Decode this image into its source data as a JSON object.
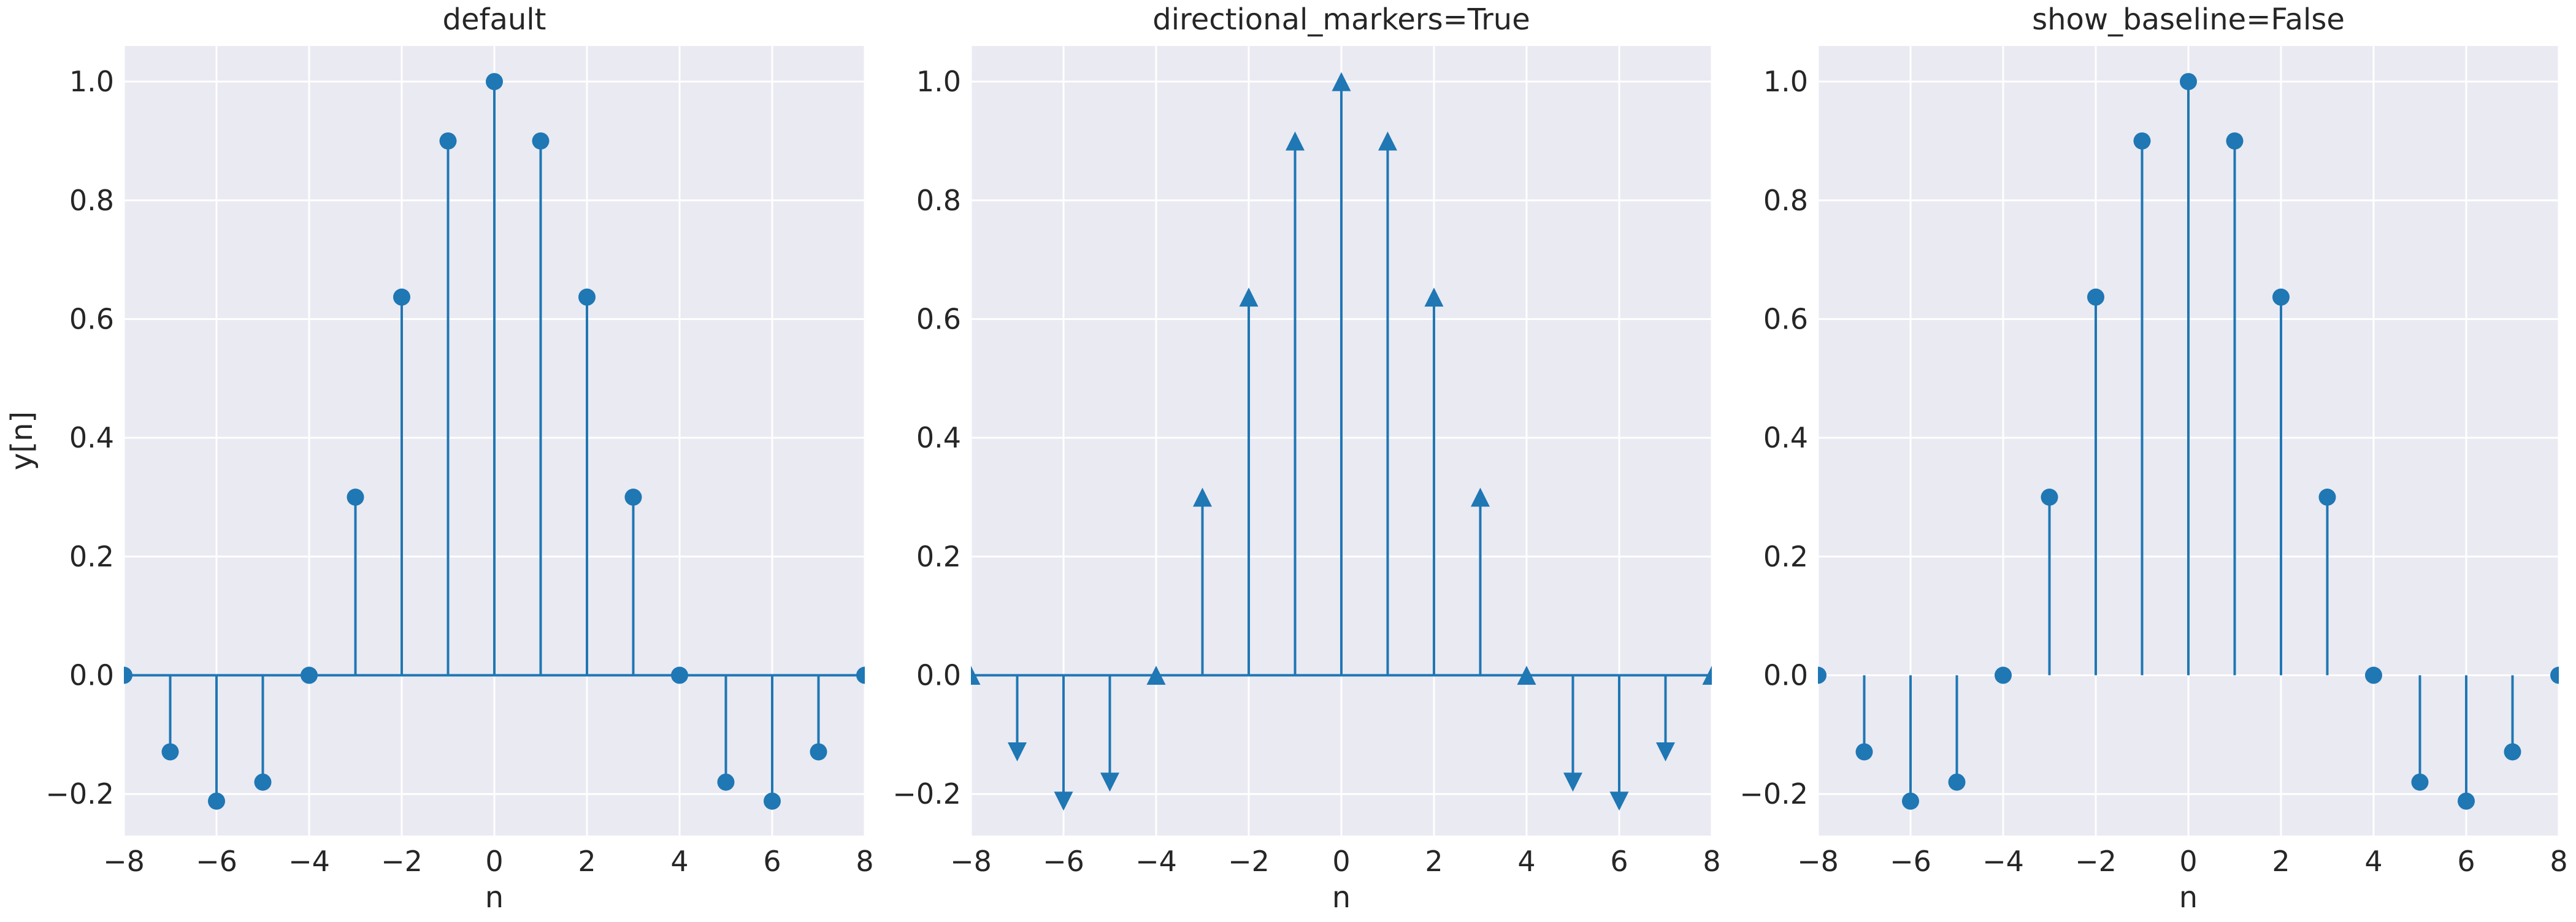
{
  "chart_data": [
    {
      "type": "stem",
      "title": "default",
      "xlabel": "n",
      "ylabel": "y[n]",
      "x": [
        -8,
        -7,
        -6,
        -5,
        -4,
        -3,
        -2,
        -1,
        0,
        1,
        2,
        3,
        4,
        5,
        6,
        7,
        8
      ],
      "y": [
        0,
        -0.129,
        -0.212,
        -0.18,
        0,
        0.3,
        0.637,
        0.9,
        1.0,
        0.9,
        0.637,
        0.3,
        0,
        -0.18,
        -0.212,
        -0.129,
        0
      ],
      "xlim": [
        -8,
        8
      ],
      "ylim": [
        -0.27,
        1.06
      ],
      "xticks": [
        "−8",
        "−6",
        "−4",
        "−2",
        "0",
        "2",
        "4",
        "6",
        "8"
      ],
      "yticks": [
        "−0.2",
        "0.0",
        "0.2",
        "0.4",
        "0.6",
        "0.8",
        "1.0"
      ],
      "marker": "circle",
      "baseline": true,
      "grid": true
    },
    {
      "type": "stem",
      "title": "directional_markers=True",
      "xlabel": "n",
      "ylabel": "",
      "x": [
        -8,
        -7,
        -6,
        -5,
        -4,
        -3,
        -2,
        -1,
        0,
        1,
        2,
        3,
        4,
        5,
        6,
        7,
        8
      ],
      "y": [
        0,
        -0.129,
        -0.212,
        -0.18,
        0,
        0.3,
        0.637,
        0.9,
        1.0,
        0.9,
        0.637,
        0.3,
        0,
        -0.18,
        -0.212,
        -0.129,
        0
      ],
      "xlim": [
        -8,
        8
      ],
      "ylim": [
        -0.27,
        1.06
      ],
      "xticks": [
        "−8",
        "−6",
        "−4",
        "−2",
        "0",
        "2",
        "4",
        "6",
        "8"
      ],
      "yticks": [
        "−0.2",
        "0.0",
        "0.2",
        "0.4",
        "0.6",
        "0.8",
        "1.0"
      ],
      "marker": "directional-triangle",
      "baseline": true,
      "grid": true
    },
    {
      "type": "stem",
      "title": "show_baseline=False",
      "xlabel": "n",
      "ylabel": "",
      "x": [
        -8,
        -7,
        -6,
        -5,
        -4,
        -3,
        -2,
        -1,
        0,
        1,
        2,
        3,
        4,
        5,
        6,
        7,
        8
      ],
      "y": [
        0,
        -0.129,
        -0.212,
        -0.18,
        0,
        0.3,
        0.637,
        0.9,
        1.0,
        0.9,
        0.637,
        0.3,
        0,
        -0.18,
        -0.212,
        -0.129,
        0
      ],
      "xlim": [
        -8,
        8
      ],
      "ylim": [
        -0.27,
        1.06
      ],
      "xticks": [
        "−8",
        "−6",
        "−4",
        "−2",
        "0",
        "2",
        "4",
        "6",
        "8"
      ],
      "yticks": [
        "−0.2",
        "0.0",
        "0.2",
        "0.4",
        "0.6",
        "0.8",
        "1.0"
      ],
      "marker": "circle",
      "baseline": false,
      "grid": true
    }
  ],
  "colors": {
    "series": "#1f77b4",
    "axes_bg": "#eaeaf2",
    "grid": "#ffffff",
    "text": "#262626"
  }
}
